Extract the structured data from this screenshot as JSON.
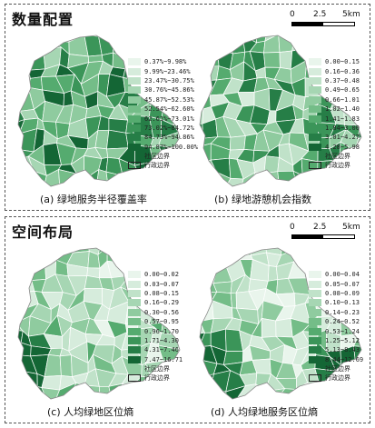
{
  "top": {
    "title": "数量配置",
    "scale": {
      "labels": [
        "0",
        "2.5",
        "5km"
      ]
    },
    "panels": [
      {
        "caption": "(a) 绿地服务半径覆盖率",
        "legend": [
          {
            "label": "0.37%~9.98%",
            "color": "#e9f5ec"
          },
          {
            "label": "9.99%~23.46%",
            "color": "#d6ecdc"
          },
          {
            "label": "23.47%~30.75%",
            "color": "#c0e2c9"
          },
          {
            "label": "30.76%~45.86%",
            "color": "#a6d6b3"
          },
          {
            "label": "45.87%~52.53%",
            "color": "#8fcb9f"
          },
          {
            "label": "52.54%~62.60%",
            "color": "#74bd88"
          },
          {
            "label": "62.61%~73.01%",
            "color": "#55ab6f"
          },
          {
            "label": "73.02%~84.72%",
            "color": "#3b9559"
          },
          {
            "label": "84.73%~94.86%",
            "color": "#267e47"
          },
          {
            "label": "94.87%~100.00%",
            "color": "#146635"
          }
        ],
        "boundary_community": "社区边界",
        "boundary_admin": "行政边界"
      },
      {
        "caption": "(b) 绿地游憩机会指数",
        "legend": [
          {
            "label": "0.00~0.15",
            "color": "#e9f5ec"
          },
          {
            "label": "0.16~0.36",
            "color": "#d6ecdc"
          },
          {
            "label": "0.37~0.48",
            "color": "#c0e2c9"
          },
          {
            "label": "0.49~0.65",
            "color": "#a6d6b3"
          },
          {
            "label": "0.66~1.01",
            "color": "#8fcb9f"
          },
          {
            "label": "1.02~1.40",
            "color": "#74bd88"
          },
          {
            "label": "1.41~1.83",
            "color": "#55ab6f"
          },
          {
            "label": "1.84~3.00",
            "color": "#3b9559"
          },
          {
            "label": "3.01~4.27",
            "color": "#267e47"
          },
          {
            "label": "4.28~5.98",
            "color": "#146635"
          }
        ],
        "boundary_community": "社区边界",
        "boundary_admin": "行政边界"
      }
    ]
  },
  "bottom": {
    "title": "空间布局",
    "scale": {
      "labels": [
        "0",
        "2.5",
        "5km"
      ]
    },
    "panels": [
      {
        "caption": "(c) 人均绿地区位熵",
        "legend": [
          {
            "label": "0.00~0.02",
            "color": "#e9f5ec"
          },
          {
            "label": "0.03~0.07",
            "color": "#d6ecdc"
          },
          {
            "label": "0.08~0.15",
            "color": "#c0e2c9"
          },
          {
            "label": "0.16~0.29",
            "color": "#a6d6b3"
          },
          {
            "label": "0.30~0.56",
            "color": "#8fcb9f"
          },
          {
            "label": "0.57~0.95",
            "color": "#74bd88"
          },
          {
            "label": "0.96~1.70",
            "color": "#55ab6f"
          },
          {
            "label": "1.71~4.30",
            "color": "#3b9559"
          },
          {
            "label": "4.31~7.46",
            "color": "#267e47"
          },
          {
            "label": "7.47~16.71",
            "color": "#146635"
          }
        ],
        "boundary_community": "社区边界",
        "boundary_admin": "行政边界"
      },
      {
        "caption": "(d) 人均绿地服务区位熵",
        "legend": [
          {
            "label": "0.00~0.04",
            "color": "#e9f5ec"
          },
          {
            "label": "0.05~0.07",
            "color": "#d6ecdc"
          },
          {
            "label": "0.08~0.09",
            "color": "#c0e2c9"
          },
          {
            "label": "0.10~0.13",
            "color": "#a6d6b3"
          },
          {
            "label": "0.14~0.23",
            "color": "#8fcb9f"
          },
          {
            "label": "0.24~0.52",
            "color": "#74bd88"
          },
          {
            "label": "0.53~1.24",
            "color": "#55ab6f"
          },
          {
            "label": "1.25~5.12",
            "color": "#3b9559"
          },
          {
            "label": "5.13~8.43",
            "color": "#267e47"
          },
          {
            "label": "8.44~12.69",
            "color": "#146635"
          }
        ],
        "boundary_community": "社区边界",
        "boundary_admin": "行政边界"
      }
    ]
  }
}
